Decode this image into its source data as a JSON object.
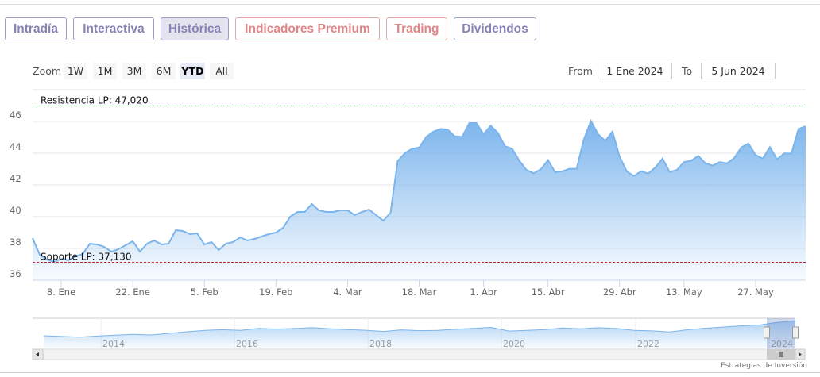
{
  "tabs": [
    {
      "label": "Intradía",
      "style": "purple"
    },
    {
      "label": "Interactiva",
      "style": "purple"
    },
    {
      "label": "Histórica",
      "style": "purple",
      "active": true
    },
    {
      "label": "Indicadores Premium",
      "style": "red"
    },
    {
      "label": "Trading",
      "style": "red"
    },
    {
      "label": "Dividendos",
      "style": "purple"
    }
  ],
  "colors": {
    "purple": "#8683b4",
    "red": "#e08585",
    "series": "#7cb5ec",
    "resistance": "#2e7d32",
    "support": "#c62828"
  },
  "range_selector": {
    "zoom_label": "Zoom",
    "buttons": [
      "1W",
      "1M",
      "3M",
      "6M",
      "YTD",
      "All"
    ],
    "selected": "YTD",
    "from_label": "From",
    "from_value": "1 Ene 2024",
    "to_label": "To",
    "to_value": "5 Jun 2024"
  },
  "chart_data": {
    "type": "area",
    "ylim": [
      36,
      48
    ],
    "yticks": [
      36,
      38,
      40,
      42,
      44,
      46
    ],
    "xticks": [
      {
        "date": "2024-01-08",
        "label": "8. Ene"
      },
      {
        "date": "2024-01-22",
        "label": "22. Ene"
      },
      {
        "date": "2024-02-05",
        "label": "5. Feb"
      },
      {
        "date": "2024-02-19",
        "label": "19. Feb"
      },
      {
        "date": "2024-03-04",
        "label": "4. Mar"
      },
      {
        "date": "2024-03-18",
        "label": "18. Mar"
      },
      {
        "date": "2024-04-02",
        "label": "1. Abr"
      },
      {
        "date": "2024-04-15",
        "label": "15. Abr"
      },
      {
        "date": "2024-04-29",
        "label": "29. Abr"
      },
      {
        "date": "2024-05-13",
        "label": "13. May"
      },
      {
        "date": "2024-05-27",
        "label": "27. May"
      }
    ],
    "plot_lines": [
      {
        "label": "Resistencia LP: 47,020",
        "value": 47.02,
        "color": "#2e7d32"
      },
      {
        "label": "Soporte LP: 37,130",
        "value": 37.13,
        "color": "#c62828"
      }
    ],
    "dates": [
      "2024-01-02",
      "2024-01-03",
      "2024-01-04",
      "2024-01-05",
      "2024-01-08",
      "2024-01-09",
      "2024-01-10",
      "2024-01-11",
      "2024-01-12",
      "2024-01-15",
      "2024-01-16",
      "2024-01-17",
      "2024-01-18",
      "2024-01-19",
      "2024-01-22",
      "2024-01-23",
      "2024-01-24",
      "2024-01-25",
      "2024-01-26",
      "2024-01-29",
      "2024-01-30",
      "2024-01-31",
      "2024-02-01",
      "2024-02-02",
      "2024-02-05",
      "2024-02-06",
      "2024-02-07",
      "2024-02-08",
      "2024-02-09",
      "2024-02-12",
      "2024-02-13",
      "2024-02-14",
      "2024-02-15",
      "2024-02-16",
      "2024-02-19",
      "2024-02-20",
      "2024-02-21",
      "2024-02-22",
      "2024-02-23",
      "2024-02-26",
      "2024-02-27",
      "2024-02-28",
      "2024-02-29",
      "2024-03-01",
      "2024-03-04",
      "2024-03-05",
      "2024-03-06",
      "2024-03-07",
      "2024-03-08",
      "2024-03-11",
      "2024-03-12",
      "2024-03-13",
      "2024-03-14",
      "2024-03-15",
      "2024-03-18",
      "2024-03-19",
      "2024-03-20",
      "2024-03-21",
      "2024-03-22",
      "2024-03-25",
      "2024-03-26",
      "2024-03-27",
      "2024-03-28",
      "2024-04-02",
      "2024-04-03",
      "2024-04-04",
      "2024-04-05",
      "2024-04-08",
      "2024-04-09",
      "2024-04-10",
      "2024-04-11",
      "2024-04-12",
      "2024-04-15",
      "2024-04-16",
      "2024-04-17",
      "2024-04-18",
      "2024-04-19",
      "2024-04-22",
      "2024-04-23",
      "2024-04-24",
      "2024-04-25",
      "2024-04-26",
      "2024-04-29",
      "2024-04-30",
      "2024-05-02",
      "2024-05-03",
      "2024-05-06",
      "2024-05-07",
      "2024-05-08",
      "2024-05-09",
      "2024-05-10",
      "2024-05-13",
      "2024-05-14",
      "2024-05-15",
      "2024-05-16",
      "2024-05-17",
      "2024-05-20",
      "2024-05-21",
      "2024-05-22",
      "2024-05-23",
      "2024-05-24",
      "2024-05-27",
      "2024-05-28",
      "2024-05-29",
      "2024-05-30",
      "2024-05-31",
      "2024-06-03",
      "2024-06-04",
      "2024-06-05"
    ],
    "values": [
      38.65,
      37.6,
      37.3,
      37.15,
      37.35,
      37.25,
      37.5,
      37.65,
      38.3,
      38.25,
      38.1,
      37.8,
      37.95,
      38.2,
      38.45,
      37.8,
      38.3,
      38.5,
      38.25,
      38.3,
      39.15,
      39.1,
      38.9,
      38.95,
      38.25,
      38.4,
      37.9,
      38.3,
      38.4,
      38.7,
      38.5,
      38.6,
      38.75,
      38.9,
      39.0,
      39.3,
      40.0,
      40.3,
      40.3,
      40.8,
      40.4,
      40.3,
      40.3,
      40.4,
      40.4,
      40.1,
      40.3,
      40.45,
      40.1,
      39.75,
      40.25,
      43.5,
      44.0,
      44.28,
      44.36,
      45.03,
      45.36,
      45.53,
      45.48,
      45.06,
      45.03,
      45.9,
      45.9,
      45.2,
      45.73,
      45.28,
      44.44,
      44.28,
      43.53,
      42.94,
      42.74,
      42.99,
      43.56,
      42.8,
      42.86,
      43.02,
      43.02,
      44.86,
      46.03,
      45.2,
      44.78,
      45.36,
      43.78,
      42.86,
      42.56,
      42.86,
      42.72,
      43.1,
      43.66,
      42.82,
      42.94,
      43.44,
      43.53,
      43.83,
      43.36,
      43.22,
      43.44,
      43.36,
      43.69,
      44.36,
      44.61,
      43.89,
      43.66,
      44.39,
      43.61,
      43.99,
      43.98,
      45.53,
      45.7
    ]
  },
  "navigator": {
    "year_labels": [
      "2014",
      "2016",
      "2018",
      "2020",
      "2022",
      "2024"
    ],
    "values": [
      30,
      29.5,
      29,
      29.8,
      30.5,
      31,
      30.6,
      31.8,
      33,
      34,
      34.5,
      34,
      35.5,
      35,
      35.4,
      36,
      35.2,
      34.6,
      34.1,
      33.2,
      34.4,
      33.8,
      34,
      34.8,
      35.5,
      36.2,
      33.5,
      34,
      34.6,
      35.8,
      35.2,
      36,
      35.4,
      34,
      33.6,
      32.8,
      34.5,
      35.6,
      36.5,
      37.4,
      38,
      40,
      41
    ]
  },
  "credit": "Estrategias de Inversión"
}
